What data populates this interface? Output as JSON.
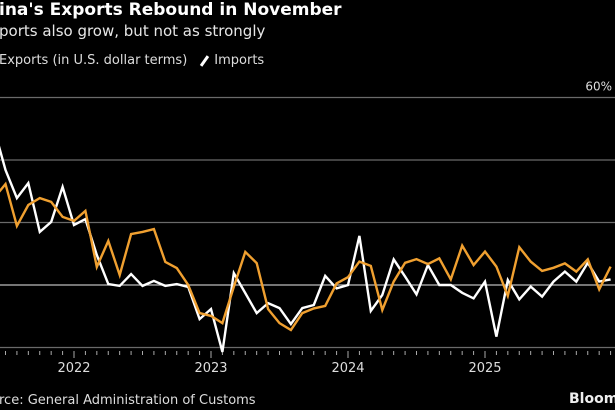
{
  "colors": {
    "exports": "#f0a030",
    "imports": "#ffffff",
    "grid": "#6a6a6a",
    "background": "#000000"
  },
  "header": {
    "title": "ina's Exports Rebound in November",
    "subtitle": "ports also grow, but not as strongly"
  },
  "legend": {
    "exports_label": "Exports (in U.S. dollar terms)",
    "imports_label": "Imports",
    "imports_icon": "slash-line-icon"
  },
  "footer": {
    "source": "rce: General Administration of Customs",
    "brand": "Bloomb"
  },
  "chart_data": {
    "type": "line",
    "title": "ina's Exports Rebound in November",
    "subtitle": "ports also grow, but not as strongly",
    "ylim": [
      -20,
      60
    ],
    "y_ticks": [
      -20,
      0,
      20,
      40,
      60
    ],
    "y_tick_labels_visible": {
      "60": "60%"
    },
    "x_tick_labels": [
      "2022",
      "2023",
      "2024",
      "2025"
    ],
    "grid": true,
    "legend_placement": "top-left",
    "x": [
      "2021-05",
      "2021-06",
      "2021-07",
      "2021-08",
      "2021-09",
      "2021-10",
      "2021-11",
      "2021-12",
      "2022-01",
      "2022-02",
      "2022-03",
      "2022-04",
      "2022-05",
      "2022-06",
      "2022-07",
      "2022-08",
      "2022-09",
      "2022-10",
      "2022-11",
      "2022-12",
      "2023-01",
      "2023-02",
      "2023-03",
      "2023-04",
      "2023-05",
      "2023-06",
      "2023-07",
      "2023-08",
      "2023-09",
      "2023-10",
      "2023-11",
      "2023-12",
      "2024-01",
      "2024-02",
      "2024-03",
      "2024-04",
      "2024-05",
      "2024-06",
      "2024-07",
      "2024-08",
      "2024-09",
      "2024-10",
      "2024-11",
      "2024-12",
      "2025-01",
      "2025-02",
      "2025-03",
      "2025-04",
      "2025-05",
      "2025-06",
      "2025-07",
      "2025-08",
      "2025-09",
      "2025-10",
      "2025-11"
    ],
    "series": [
      {
        "name": "Exports (in U.S. dollar terms)",
        "color": "#f0a030",
        "values": [
          27.9,
          32.3,
          18.9,
          25.6,
          27.8,
          26.6,
          21.8,
          20.5,
          23.7,
          5.8,
          14.1,
          3.2,
          16.3,
          17.0,
          17.9,
          7.4,
          5.4,
          0,
          -9.0,
          -9.9,
          -12.2,
          -0.6,
          10.6,
          7.0,
          -7.7,
          -12.2,
          -14.4,
          -9.0,
          -7.5,
          -6.7,
          0.5,
          2.5,
          7.5,
          6.1,
          -8.0,
          1.1,
          7.1,
          8.3,
          6.7,
          8.5,
          1.8,
          12.6,
          6.4,
          10.7,
          5.9,
          -3.5,
          12.1,
          7.5,
          4.5,
          5.5,
          6.9,
          4.3,
          8.2,
          -1.4,
          5.9
        ]
      },
      {
        "name": "Imports",
        "color": "#ffffff",
        "values": [
          50,
          36.8,
          27.8,
          32.6,
          17.0,
          20.2,
          31.4,
          19.2,
          21.1,
          9.6,
          0.3,
          -0.3,
          3.5,
          -0.3,
          1.3,
          -0.3,
          0.3,
          -0.6,
          -10.9,
          -7.7,
          -21.4,
          3.8,
          -2.6,
          -9.0,
          -5.8,
          -7.4,
          -12.5,
          -7.4,
          -6.4,
          2.9,
          -1.1,
          0,
          15.7,
          -8.3,
          -3.2,
          8.2,
          2.7,
          -3.0,
          6.4,
          0,
          0,
          -2.5,
          -4.3,
          1.1,
          -16.5,
          1.6,
          -4.6,
          -0.5,
          -3.7,
          1.1,
          4.3,
          1.1,
          7.1,
          1.1,
          1.8
        ]
      }
    ]
  }
}
